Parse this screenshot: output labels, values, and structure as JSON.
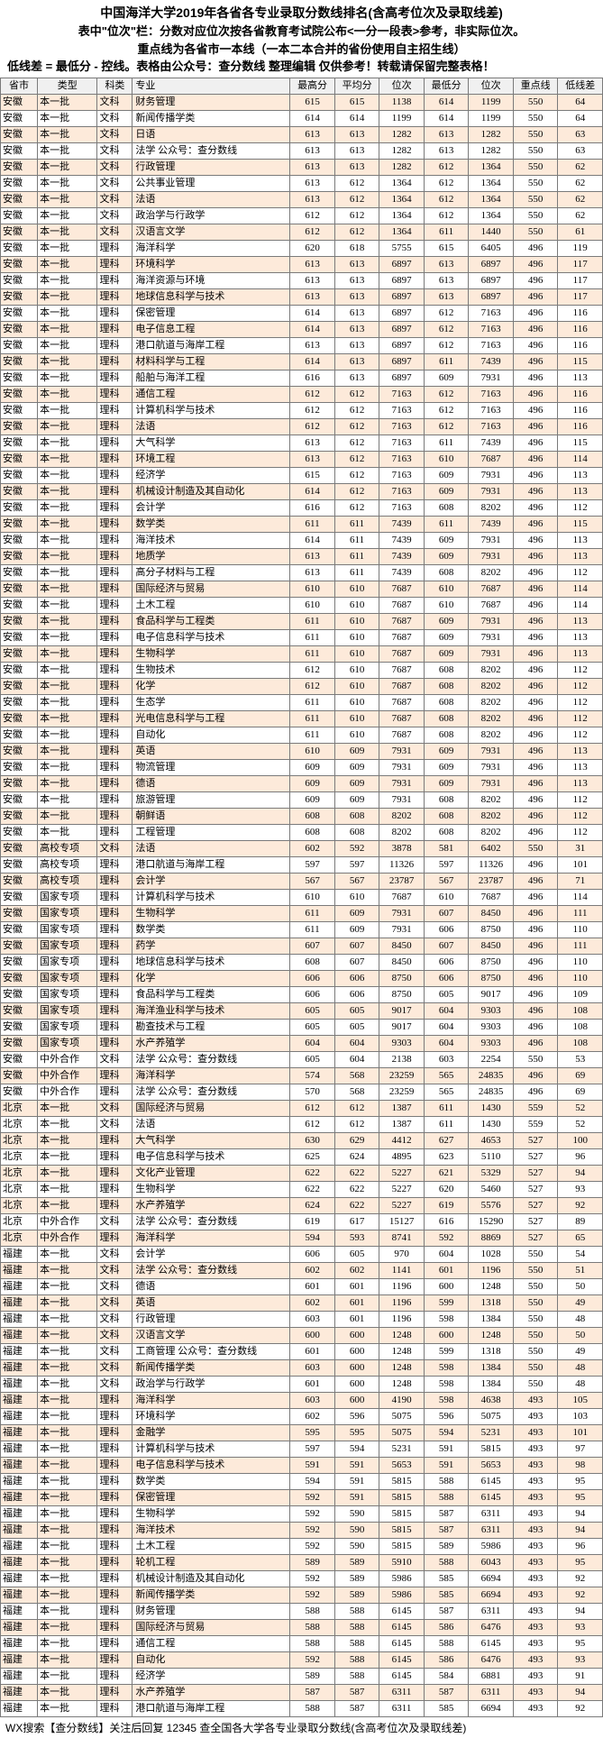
{
  "header": {
    "title": "中国海洋大学2019年各省各专业录取分数线排名(含高考位次及录取线差)",
    "line2": "表中\"位次\"栏：分数对应位次按各省教育考试院公布<一分一段表>参考，非实际位次。",
    "line3": "重点线为各省市一本线（一本二本合并的省份使用自主招生线）",
    "line4": "低线差 = 最低分 - 控线。表格由公众号：查分数线 整理编辑 仅供参考！转载请保留完整表格！"
  },
  "columns": [
    "省市",
    "类型",
    "科类",
    "专业",
    "最高分",
    "平均分",
    "位次",
    "最低分",
    "位次",
    "重点线",
    "低线差"
  ],
  "rows": [
    [
      "安徽",
      "本一批",
      "文科",
      "财务管理",
      "615",
      "615",
      "1138",
      "614",
      "1199",
      "550",
      "64"
    ],
    [
      "安徽",
      "本一批",
      "文科",
      "新闻传播学类",
      "614",
      "614",
      "1199",
      "614",
      "1199",
      "550",
      "64"
    ],
    [
      "安徽",
      "本一批",
      "文科",
      "日语",
      "613",
      "613",
      "1282",
      "613",
      "1282",
      "550",
      "63"
    ],
    [
      "安徽",
      "本一批",
      "文科",
      "法学  公众号：查分数线",
      "613",
      "613",
      "1282",
      "613",
      "1282",
      "550",
      "63"
    ],
    [
      "安徽",
      "本一批",
      "文科",
      "行政管理",
      "613",
      "613",
      "1282",
      "612",
      "1364",
      "550",
      "62"
    ],
    [
      "安徽",
      "本一批",
      "文科",
      "公共事业管理",
      "613",
      "612",
      "1364",
      "612",
      "1364",
      "550",
      "62"
    ],
    [
      "安徽",
      "本一批",
      "文科",
      "法语",
      "613",
      "612",
      "1364",
      "612",
      "1364",
      "550",
      "62"
    ],
    [
      "安徽",
      "本一批",
      "文科",
      "政治学与行政学",
      "612",
      "612",
      "1364",
      "612",
      "1364",
      "550",
      "62"
    ],
    [
      "安徽",
      "本一批",
      "文科",
      "汉语言文学",
      "612",
      "612",
      "1364",
      "611",
      "1440",
      "550",
      "61"
    ],
    [
      "安徽",
      "本一批",
      "理科",
      "海洋科学",
      "620",
      "618",
      "5755",
      "615",
      "6405",
      "496",
      "119"
    ],
    [
      "安徽",
      "本一批",
      "理科",
      "环境科学",
      "613",
      "613",
      "6897",
      "613",
      "6897",
      "496",
      "117"
    ],
    [
      "安徽",
      "本一批",
      "理科",
      "海洋资源与环境",
      "613",
      "613",
      "6897",
      "613",
      "6897",
      "496",
      "117"
    ],
    [
      "安徽",
      "本一批",
      "理科",
      "地球信息科学与技术",
      "613",
      "613",
      "6897",
      "613",
      "6897",
      "496",
      "117"
    ],
    [
      "安徽",
      "本一批",
      "理科",
      "保密管理",
      "614",
      "613",
      "6897",
      "612",
      "7163",
      "496",
      "116"
    ],
    [
      "安徽",
      "本一批",
      "理科",
      "电子信息工程",
      "614",
      "613",
      "6897",
      "612",
      "7163",
      "496",
      "116"
    ],
    [
      "安徽",
      "本一批",
      "理科",
      "港口航道与海岸工程",
      "613",
      "613",
      "6897",
      "612",
      "7163",
      "496",
      "116"
    ],
    [
      "安徽",
      "本一批",
      "理科",
      "材料科学与工程",
      "614",
      "613",
      "6897",
      "611",
      "7439",
      "496",
      "115"
    ],
    [
      "安徽",
      "本一批",
      "理科",
      "船舶与海洋工程",
      "616",
      "613",
      "6897",
      "609",
      "7931",
      "496",
      "113"
    ],
    [
      "安徽",
      "本一批",
      "理科",
      "通信工程",
      "612",
      "612",
      "7163",
      "612",
      "7163",
      "496",
      "116"
    ],
    [
      "安徽",
      "本一批",
      "理科",
      "计算机科学与技术",
      "612",
      "612",
      "7163",
      "612",
      "7163",
      "496",
      "116"
    ],
    [
      "安徽",
      "本一批",
      "理科",
      "法语",
      "612",
      "612",
      "7163",
      "612",
      "7163",
      "496",
      "116"
    ],
    [
      "安徽",
      "本一批",
      "理科",
      "大气科学",
      "613",
      "612",
      "7163",
      "611",
      "7439",
      "496",
      "115"
    ],
    [
      "安徽",
      "本一批",
      "理科",
      "环境工程",
      "613",
      "612",
      "7163",
      "610",
      "7687",
      "496",
      "114"
    ],
    [
      "安徽",
      "本一批",
      "理科",
      "经济学",
      "615",
      "612",
      "7163",
      "609",
      "7931",
      "496",
      "113"
    ],
    [
      "安徽",
      "本一批",
      "理科",
      "机械设计制造及其自动化",
      "614",
      "612",
      "7163",
      "609",
      "7931",
      "496",
      "113"
    ],
    [
      "安徽",
      "本一批",
      "理科",
      "会计学",
      "616",
      "612",
      "7163",
      "608",
      "8202",
      "496",
      "112"
    ],
    [
      "安徽",
      "本一批",
      "理科",
      "数学类",
      "611",
      "611",
      "7439",
      "611",
      "7439",
      "496",
      "115"
    ],
    [
      "安徽",
      "本一批",
      "理科",
      "海洋技术",
      "614",
      "611",
      "7439",
      "609",
      "7931",
      "496",
      "113"
    ],
    [
      "安徽",
      "本一批",
      "理科",
      "地质学",
      "613",
      "611",
      "7439",
      "609",
      "7931",
      "496",
      "113"
    ],
    [
      "安徽",
      "本一批",
      "理科",
      "高分子材料与工程",
      "613",
      "611",
      "7439",
      "608",
      "8202",
      "496",
      "112"
    ],
    [
      "安徽",
      "本一批",
      "理科",
      "国际经济与贸易",
      "610",
      "610",
      "7687",
      "610",
      "7687",
      "496",
      "114"
    ],
    [
      "安徽",
      "本一批",
      "理科",
      "土木工程",
      "610",
      "610",
      "7687",
      "610",
      "7687",
      "496",
      "114"
    ],
    [
      "安徽",
      "本一批",
      "理科",
      "食品科学与工程类",
      "611",
      "610",
      "7687",
      "609",
      "7931",
      "496",
      "113"
    ],
    [
      "安徽",
      "本一批",
      "理科",
      "电子信息科学与技术",
      "611",
      "610",
      "7687",
      "609",
      "7931",
      "496",
      "113"
    ],
    [
      "安徽",
      "本一批",
      "理科",
      "生物科学",
      "611",
      "610",
      "7687",
      "609",
      "7931",
      "496",
      "113"
    ],
    [
      "安徽",
      "本一批",
      "理科",
      "生物技术",
      "612",
      "610",
      "7687",
      "608",
      "8202",
      "496",
      "112"
    ],
    [
      "安徽",
      "本一批",
      "理科",
      "化学",
      "612",
      "610",
      "7687",
      "608",
      "8202",
      "496",
      "112"
    ],
    [
      "安徽",
      "本一批",
      "理科",
      "生态学",
      "611",
      "610",
      "7687",
      "608",
      "8202",
      "496",
      "112"
    ],
    [
      "安徽",
      "本一批",
      "理科",
      "光电信息科学与工程",
      "611",
      "610",
      "7687",
      "608",
      "8202",
      "496",
      "112"
    ],
    [
      "安徽",
      "本一批",
      "理科",
      "自动化",
      "611",
      "610",
      "7687",
      "608",
      "8202",
      "496",
      "112"
    ],
    [
      "安徽",
      "本一批",
      "理科",
      "英语",
      "610",
      "609",
      "7931",
      "609",
      "7931",
      "496",
      "113"
    ],
    [
      "安徽",
      "本一批",
      "理科",
      "物流管理",
      "609",
      "609",
      "7931",
      "609",
      "7931",
      "496",
      "113"
    ],
    [
      "安徽",
      "本一批",
      "理科",
      "德语",
      "609",
      "609",
      "7931",
      "609",
      "7931",
      "496",
      "113"
    ],
    [
      "安徽",
      "本一批",
      "理科",
      "旅游管理",
      "609",
      "609",
      "7931",
      "608",
      "8202",
      "496",
      "112"
    ],
    [
      "安徽",
      "本一批",
      "理科",
      "朝鲜语",
      "608",
      "608",
      "8202",
      "608",
      "8202",
      "496",
      "112"
    ],
    [
      "安徽",
      "本一批",
      "理科",
      "工程管理",
      "608",
      "608",
      "8202",
      "608",
      "8202",
      "496",
      "112"
    ],
    [
      "安徽",
      "高校专项",
      "文科",
      "法语",
      "602",
      "592",
      "3878",
      "581",
      "6402",
      "550",
      "31"
    ],
    [
      "安徽",
      "高校专项",
      "理科",
      "港口航道与海岸工程",
      "597",
      "597",
      "11326",
      "597",
      "11326",
      "496",
      "101"
    ],
    [
      "安徽",
      "高校专项",
      "理科",
      "会计学",
      "567",
      "567",
      "23787",
      "567",
      "23787",
      "496",
      "71"
    ],
    [
      "安徽",
      "国家专项",
      "理科",
      "计算机科学与技术",
      "610",
      "610",
      "7687",
      "610",
      "7687",
      "496",
      "114"
    ],
    [
      "安徽",
      "国家专项",
      "理科",
      "生物科学",
      "611",
      "609",
      "7931",
      "607",
      "8450",
      "496",
      "111"
    ],
    [
      "安徽",
      "国家专项",
      "理科",
      "数学类",
      "611",
      "609",
      "7931",
      "606",
      "8750",
      "496",
      "110"
    ],
    [
      "安徽",
      "国家专项",
      "理科",
      "药学",
      "607",
      "607",
      "8450",
      "607",
      "8450",
      "496",
      "111"
    ],
    [
      "安徽",
      "国家专项",
      "理科",
      "地球信息科学与技术",
      "608",
      "607",
      "8450",
      "606",
      "8750",
      "496",
      "110"
    ],
    [
      "安徽",
      "国家专项",
      "理科",
      "化学",
      "606",
      "606",
      "8750",
      "606",
      "8750",
      "496",
      "110"
    ],
    [
      "安徽",
      "国家专项",
      "理科",
      "食品科学与工程类",
      "606",
      "606",
      "8750",
      "605",
      "9017",
      "496",
      "109"
    ],
    [
      "安徽",
      "国家专项",
      "理科",
      "海洋渔业科学与技术",
      "605",
      "605",
      "9017",
      "604",
      "9303",
      "496",
      "108"
    ],
    [
      "安徽",
      "国家专项",
      "理科",
      "勘查技术与工程",
      "605",
      "605",
      "9017",
      "604",
      "9303",
      "496",
      "108"
    ],
    [
      "安徽",
      "国家专项",
      "理科",
      "水产养殖学",
      "604",
      "604",
      "9303",
      "604",
      "9303",
      "496",
      "108"
    ],
    [
      "安徽",
      "中外合作",
      "文科",
      "法学  公众号：查分数线",
      "605",
      "604",
      "2138",
      "603",
      "2254",
      "550",
      "53"
    ],
    [
      "安徽",
      "中外合作",
      "理科",
      "海洋科学",
      "574",
      "568",
      "23259",
      "565",
      "24835",
      "496",
      "69"
    ],
    [
      "安徽",
      "中外合作",
      "理科",
      "法学  公众号：查分数线",
      "570",
      "568",
      "23259",
      "565",
      "24835",
      "496",
      "69"
    ],
    [
      "北京",
      "本一批",
      "文科",
      "国际经济与贸易",
      "612",
      "612",
      "1387",
      "611",
      "1430",
      "559",
      "52"
    ],
    [
      "北京",
      "本一批",
      "文科",
      "法语",
      "612",
      "612",
      "1387",
      "611",
      "1430",
      "559",
      "52"
    ],
    [
      "北京",
      "本一批",
      "理科",
      "大气科学",
      "630",
      "629",
      "4412",
      "627",
      "4653",
      "527",
      "100"
    ],
    [
      "北京",
      "本一批",
      "理科",
      "电子信息科学与技术",
      "625",
      "624",
      "4895",
      "623",
      "5110",
      "527",
      "96"
    ],
    [
      "北京",
      "本一批",
      "理科",
      "文化产业管理",
      "622",
      "622",
      "5227",
      "621",
      "5329",
      "527",
      "94"
    ],
    [
      "北京",
      "本一批",
      "理科",
      "生物科学",
      "622",
      "622",
      "5227",
      "620",
      "5460",
      "527",
      "93"
    ],
    [
      "北京",
      "本一批",
      "理科",
      "水产养殖学",
      "624",
      "622",
      "5227",
      "619",
      "5576",
      "527",
      "92"
    ],
    [
      "北京",
      "中外合作",
      "文科",
      "法学  公众号：查分数线",
      "619",
      "617",
      "15127",
      "616",
      "15290",
      "527",
      "89"
    ],
    [
      "北京",
      "中外合作",
      "理科",
      "海洋科学",
      "594",
      "593",
      "8741",
      "592",
      "8869",
      "527",
      "65"
    ],
    [
      "福建",
      "本一批",
      "文科",
      "会计学",
      "606",
      "605",
      "970",
      "604",
      "1028",
      "550",
      "54"
    ],
    [
      "福建",
      "本一批",
      "文科",
      "法学  公众号：查分数线",
      "602",
      "602",
      "1141",
      "601",
      "1196",
      "550",
      "51"
    ],
    [
      "福建",
      "本一批",
      "文科",
      "德语",
      "601",
      "601",
      "1196",
      "600",
      "1248",
      "550",
      "50"
    ],
    [
      "福建",
      "本一批",
      "文科",
      "英语",
      "602",
      "601",
      "1196",
      "599",
      "1318",
      "550",
      "49"
    ],
    [
      "福建",
      "本一批",
      "文科",
      "行政管理",
      "603",
      "601",
      "1196",
      "598",
      "1384",
      "550",
      "48"
    ],
    [
      "福建",
      "本一批",
      "文科",
      "汉语言文学",
      "600",
      "600",
      "1248",
      "600",
      "1248",
      "550",
      "50"
    ],
    [
      "福建",
      "本一批",
      "文科",
      "工商管理  公众号：查分数线",
      "601",
      "600",
      "1248",
      "599",
      "1318",
      "550",
      "49"
    ],
    [
      "福建",
      "本一批",
      "文科",
      "新闻传播学类",
      "603",
      "600",
      "1248",
      "598",
      "1384",
      "550",
      "48"
    ],
    [
      "福建",
      "本一批",
      "文科",
      "政治学与行政学",
      "601",
      "600",
      "1248",
      "598",
      "1384",
      "550",
      "48"
    ],
    [
      "福建",
      "本一批",
      "理科",
      "海洋科学",
      "603",
      "600",
      "4190",
      "598",
      "4638",
      "493",
      "105"
    ],
    [
      "福建",
      "本一批",
      "理科",
      "环境科学",
      "602",
      "596",
      "5075",
      "596",
      "5075",
      "493",
      "103"
    ],
    [
      "福建",
      "本一批",
      "理科",
      "金融学",
      "595",
      "595",
      "5075",
      "594",
      "5231",
      "493",
      "101"
    ],
    [
      "福建",
      "本一批",
      "理科",
      "计算机科学与技术",
      "597",
      "594",
      "5231",
      "591",
      "5815",
      "493",
      "97"
    ],
    [
      "福建",
      "本一批",
      "理科",
      "电子信息科学与技术",
      "591",
      "591",
      "5653",
      "591",
      "5653",
      "493",
      "98"
    ],
    [
      "福建",
      "本一批",
      "理科",
      "数学类",
      "594",
      "591",
      "5815",
      "588",
      "6145",
      "493",
      "95"
    ],
    [
      "福建",
      "本一批",
      "理科",
      "保密管理",
      "592",
      "591",
      "5815",
      "588",
      "6145",
      "493",
      "95"
    ],
    [
      "福建",
      "本一批",
      "理科",
      "生物科学",
      "592",
      "590",
      "5815",
      "587",
      "6311",
      "493",
      "94"
    ],
    [
      "福建",
      "本一批",
      "理科",
      "海洋技术",
      "592",
      "590",
      "5815",
      "587",
      "6311",
      "493",
      "94"
    ],
    [
      "福建",
      "本一批",
      "理科",
      "土木工程",
      "592",
      "590",
      "5815",
      "589",
      "5986",
      "493",
      "96"
    ],
    [
      "福建",
      "本一批",
      "理科",
      "轮机工程",
      "589",
      "589",
      "5910",
      "588",
      "6043",
      "493",
      "95"
    ],
    [
      "福建",
      "本一批",
      "理科",
      "机械设计制造及其自动化",
      "592",
      "589",
      "5986",
      "585",
      "6694",
      "493",
      "92"
    ],
    [
      "福建",
      "本一批",
      "理科",
      "新闻传播学类",
      "592",
      "589",
      "5986",
      "585",
      "6694",
      "493",
      "92"
    ],
    [
      "福建",
      "本一批",
      "理科",
      "财务管理",
      "588",
      "588",
      "6145",
      "587",
      "6311",
      "493",
      "94"
    ],
    [
      "福建",
      "本一批",
      "理科",
      "国际经济与贸易",
      "588",
      "588",
      "6145",
      "586",
      "6476",
      "493",
      "93"
    ],
    [
      "福建",
      "本一批",
      "理科",
      "通信工程",
      "588",
      "588",
      "6145",
      "588",
      "6145",
      "493",
      "95"
    ],
    [
      "福建",
      "本一批",
      "理科",
      "自动化",
      "592",
      "588",
      "6145",
      "586",
      "6476",
      "493",
      "93"
    ],
    [
      "福建",
      "本一批",
      "理科",
      "经济学",
      "589",
      "588",
      "6145",
      "584",
      "6881",
      "493",
      "91"
    ],
    [
      "福建",
      "本一批",
      "理科",
      "水产养殖学",
      "587",
      "587",
      "6311",
      "587",
      "6311",
      "493",
      "94"
    ],
    [
      "福建",
      "本一批",
      "理科",
      "港口航道与海岸工程",
      "588",
      "587",
      "6311",
      "585",
      "6694",
      "493",
      "92"
    ]
  ],
  "footer": "WX搜索【查分数线】关注后回复 12345 查全国各大学各专业录取分数线(含高考位次及录取线差)"
}
